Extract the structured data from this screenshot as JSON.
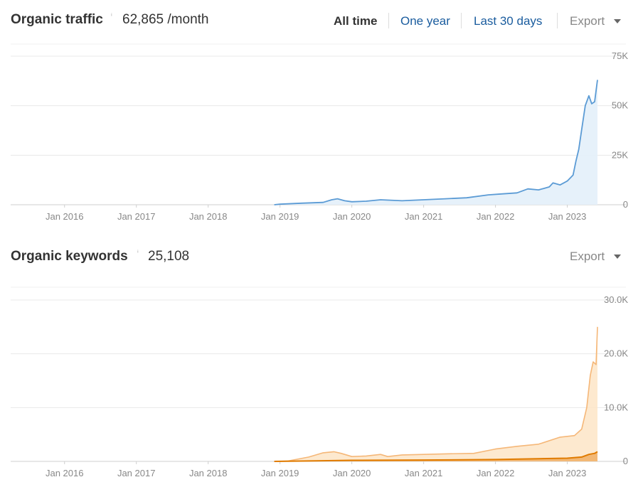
{
  "traffic_panel": {
    "title": "Organic traffic",
    "info_icon": "info-icon",
    "value": "62,865 /month",
    "ranges": [
      "All time",
      "One year",
      "Last 30 days"
    ],
    "active_range": "All time",
    "export_label": "Export"
  },
  "keywords_panel": {
    "title": "Organic keywords",
    "info_icon": "info-icon",
    "value": "25,108",
    "export_label": "Export"
  },
  "colors": {
    "traffic_line": "#5b9bd5",
    "traffic_fill": "#e3effa",
    "keywords_line": "#f5b778",
    "keywords_fill": "#fde3c3",
    "top3_line": "#e07b00",
    "top3_fill": "#f1b36b",
    "link": "#1a5c9e",
    "grid": "#e8e8e8"
  },
  "chart_data": [
    {
      "type": "area",
      "name": "organic-traffic",
      "x_ticks": [
        "Jan 2016",
        "Jan 2017",
        "Jan 2018",
        "Jan 2019",
        "Jan 2020",
        "Jan 2021",
        "Jan 2022",
        "Jan 2023"
      ],
      "y_ticks": [
        "75K",
        "50K",
        "25K",
        "0"
      ],
      "ylim": [
        0,
        75000
      ],
      "x_unit": "year",
      "series": [
        {
          "values": [
            [
              2018.92,
              0
            ],
            [
              2019.0,
              300
            ],
            [
              2019.3,
              800
            ],
            [
              2019.6,
              1200
            ],
            [
              2019.72,
              2500
            ],
            [
              2019.8,
              3000
            ],
            [
              2019.9,
              2000
            ],
            [
              2020.0,
              1500
            ],
            [
              2020.2,
              1800
            ],
            [
              2020.4,
              2500
            ],
            [
              2020.7,
              2000
            ],
            [
              2021.0,
              2500
            ],
            [
              2021.3,
              3000
            ],
            [
              2021.6,
              3500
            ],
            [
              2021.9,
              5000
            ],
            [
              2022.1,
              5500
            ],
            [
              2022.3,
              6000
            ],
            [
              2022.45,
              8000
            ],
            [
              2022.6,
              7500
            ],
            [
              2022.75,
              9000
            ],
            [
              2022.8,
              11000
            ],
            [
              2022.9,
              10000
            ],
            [
              2023.0,
              12000
            ],
            [
              2023.08,
              15000
            ],
            [
              2023.12,
              22000
            ],
            [
              2023.16,
              28000
            ],
            [
              2023.2,
              38000
            ],
            [
              2023.25,
              50000
            ],
            [
              2023.3,
              55000
            ],
            [
              2023.34,
              51000
            ],
            [
              2023.38,
              52000
            ],
            [
              2023.42,
              63000
            ]
          ]
        }
      ]
    },
    {
      "type": "area",
      "name": "organic-keywords",
      "x_ticks": [
        "Jan 2016",
        "Jan 2017",
        "Jan 2018",
        "Jan 2019",
        "Jan 2020",
        "Jan 2021",
        "Jan 2022",
        "Jan 2023"
      ],
      "y_ticks": [
        "30.0K",
        "20.0K",
        "10.0K",
        "0"
      ],
      "ylim": [
        0,
        30000
      ],
      "x_unit": "year",
      "series": [
        {
          "role": "all",
          "values": [
            [
              2018.92,
              0
            ],
            [
              2019.1,
              50
            ],
            [
              2019.4,
              800
            ],
            [
              2019.6,
              1600
            ],
            [
              2019.75,
              1800
            ],
            [
              2019.85,
              1500
            ],
            [
              2020.0,
              900
            ],
            [
              2020.2,
              1000
            ],
            [
              2020.4,
              1300
            ],
            [
              2020.5,
              900
            ],
            [
              2020.7,
              1200
            ],
            [
              2021.0,
              1300
            ],
            [
              2021.3,
              1400
            ],
            [
              2021.7,
              1500
            ],
            [
              2022.0,
              2300
            ],
            [
              2022.3,
              2800
            ],
            [
              2022.6,
              3200
            ],
            [
              2022.9,
              4500
            ],
            [
              2023.1,
              4800
            ],
            [
              2023.2,
              6000
            ],
            [
              2023.27,
              10000
            ],
            [
              2023.32,
              16000
            ],
            [
              2023.36,
              18500
            ],
            [
              2023.4,
              18000
            ],
            [
              2023.42,
              25000
            ]
          ]
        },
        {
          "role": "top-positions",
          "values": [
            [
              2018.92,
              0
            ],
            [
              2019.5,
              100
            ],
            [
              2020.0,
              200
            ],
            [
              2021.0,
              250
            ],
            [
              2022.0,
              350
            ],
            [
              2022.6,
              500
            ],
            [
              2023.0,
              600
            ],
            [
              2023.2,
              800
            ],
            [
              2023.3,
              1300
            ],
            [
              2023.38,
              1500
            ],
            [
              2023.42,
              1800
            ]
          ]
        }
      ]
    }
  ]
}
